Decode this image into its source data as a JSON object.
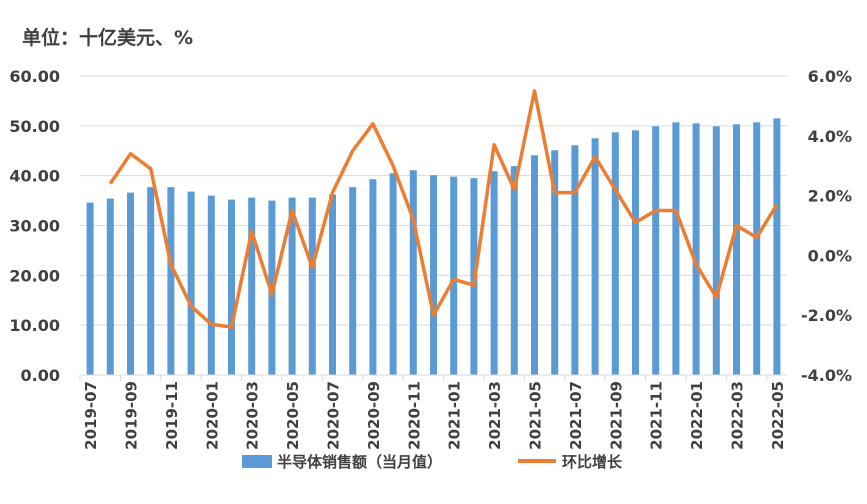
{
  "chart_data": {
    "type": "bar+line",
    "unit_label": "单位：十亿美元、%",
    "categories": [
      "2019-07",
      "2019-08",
      "2019-09",
      "2019-10",
      "2019-11",
      "2019-12",
      "2020-01",
      "2020-02",
      "2020-03",
      "2020-04",
      "2020-05",
      "2020-06",
      "2020-07",
      "2020-08",
      "2020-09",
      "2020-10",
      "2020-11",
      "2020-12",
      "2021-01",
      "2021-02",
      "2021-03",
      "2021-04",
      "2021-05",
      "2021-06",
      "2021-07",
      "2021-08",
      "2021-09",
      "2021-10",
      "2021-11",
      "2021-12",
      "2022-01",
      "2022-02",
      "2022-03",
      "2022-04",
      "2022-05"
    ],
    "x_tick_labels": [
      "2019-07",
      "2019-09",
      "2019-11",
      "2020-01",
      "2020-03",
      "2020-05",
      "2020-07",
      "2020-09",
      "2020-11",
      "2021-01",
      "2021-03",
      "2021-05",
      "2021-07",
      "2021-09",
      "2021-11",
      "2022-01",
      "2022-03",
      "2022-05"
    ],
    "series": [
      {
        "name": "半导体销售额（当月值）",
        "type": "bar",
        "axis": "left",
        "color": "#5B9BD5",
        "values": [
          34.6,
          35.4,
          36.6,
          37.7,
          37.7,
          36.8,
          36.0,
          35.2,
          35.6,
          35.0,
          35.6,
          35.6,
          36.2,
          37.7,
          39.3,
          40.5,
          41.1,
          40.1,
          39.8,
          39.5,
          40.9,
          41.9,
          44.1,
          45.1,
          46.1,
          47.5,
          48.7,
          49.1,
          49.9,
          50.7,
          50.5,
          49.9,
          50.3,
          50.7,
          51.5
        ]
      },
      {
        "name": "环比增长",
        "type": "line",
        "axis": "right",
        "color": "#ED7D31",
        "values": [
          null,
          2.4,
          3.4,
          2.9,
          -0.3,
          -1.7,
          -2.3,
          -2.4,
          0.8,
          -1.3,
          1.5,
          -0.4,
          2.1,
          3.5,
          4.4,
          3.0,
          1.2,
          -2.0,
          -0.8,
          -1.0,
          3.7,
          2.2,
          5.5,
          2.1,
          2.1,
          3.3,
          2.2,
          1.1,
          1.5,
          1.5,
          -0.3,
          -1.4,
          1.0,
          0.6,
          1.7
        ]
      }
    ],
    "left_axis": {
      "ylim": [
        0,
        60
      ],
      "ticks": [
        "0.00",
        "10.00",
        "20.00",
        "30.00",
        "40.00",
        "50.00",
        "60.00"
      ]
    },
    "right_axis": {
      "ylim": [
        -4,
        6
      ],
      "ticks": [
        "-4.0%",
        "-2.0%",
        "0.0%",
        "2.0%",
        "4.0%",
        "6.0%"
      ]
    },
    "grid": true,
    "legend_position": "bottom"
  }
}
